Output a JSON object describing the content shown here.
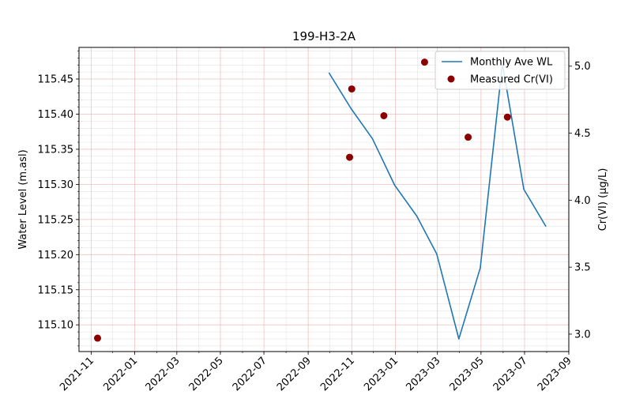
{
  "chart_data": {
    "type": "line",
    "title": "199-H3-2A",
    "xlabel": "",
    "ylabel_left": "Water Level (m.asl)",
    "ylabel_right": "Cr(VI) (µg/L)",
    "xlim": [
      "2021-10-15",
      "2023-09-01"
    ],
    "ylim_left": [
      115.062,
      115.495
    ],
    "ylim_right": [
      2.87,
      5.14
    ],
    "x_ticks": [
      "2021-11",
      "2022-01",
      "2022-03",
      "2022-05",
      "2022-07",
      "2022-09",
      "2022-11",
      "2023-01",
      "2023-03",
      "2023-05",
      "2023-07",
      "2023-09"
    ],
    "y_ticks_left": [
      115.1,
      115.15,
      115.2,
      115.25,
      115.3,
      115.35,
      115.4,
      115.45
    ],
    "y_ticks_left_labels": [
      "115.10",
      "115.15",
      "115.20",
      "115.25",
      "115.30",
      "115.35",
      "115.40",
      "115.45"
    ],
    "y_ticks_right": [
      3.0,
      3.5,
      4.0,
      4.5,
      5.0
    ],
    "y_ticks_right_labels": [
      "3.0",
      "3.5",
      "4.0",
      "4.5",
      "5.0"
    ],
    "grid": true,
    "legend_position": "top-right",
    "series": [
      {
        "name": "Monthly Ave WL",
        "type": "line",
        "axis": "left",
        "color": "#1f77b4",
        "x": [
          "2022-09-30",
          "2022-10-31",
          "2022-11-30",
          "2022-12-31",
          "2023-01-31",
          "2023-02-28",
          "2023-03-31",
          "2023-04-30",
          "2023-05-31",
          "2023-06-30",
          "2023-07-31"
        ],
        "y": [
          115.459,
          115.408,
          115.365,
          115.299,
          115.255,
          115.201,
          115.08,
          115.181,
          115.472,
          115.293,
          115.24
        ]
      },
      {
        "name": "Measured Cr(VI)",
        "type": "scatter",
        "axis": "right",
        "color": "#8b0000",
        "x": [
          "2021-11-10",
          "2022-10-29",
          "2022-11-01",
          "2022-12-16",
          "2023-02-11",
          "2023-04-13",
          "2023-06-07"
        ],
        "y": [
          2.97,
          4.32,
          4.83,
          4.63,
          5.03,
          4.47,
          4.62
        ]
      }
    ]
  }
}
